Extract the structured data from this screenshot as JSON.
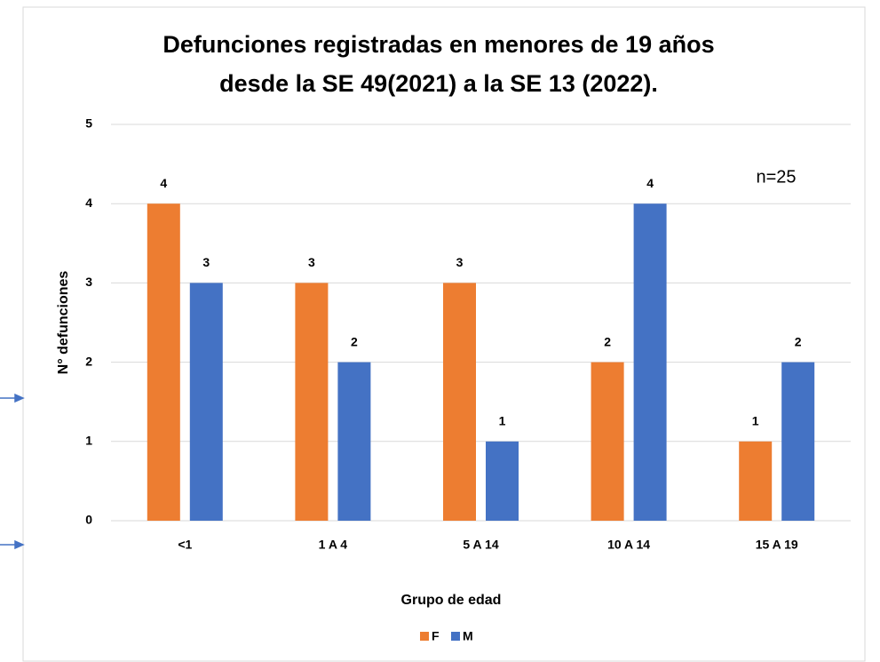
{
  "chart_data": {
    "type": "bar",
    "title": [
      "Defunciones registradas en menores de 19 años",
      "desde la SE 49(2021) a la SE 13 (2022)."
    ],
    "annotation": "n=25",
    "x_label": "Grupo de edad",
    "y_label": "N° defunciones",
    "categories": [
      "<1",
      "1 A 4",
      "5 A 14",
      "10 A 14",
      "15 A 19"
    ],
    "series": [
      {
        "name": "F",
        "color": "#ed7d31",
        "values": [
          4,
          3,
          3,
          2,
          1
        ]
      },
      {
        "name": "M",
        "color": "#4472c4",
        "values": [
          3,
          2,
          1,
          4,
          2
        ]
      }
    ],
    "ylim": [
      0,
      5
    ],
    "yticks": [
      0,
      1,
      2,
      3,
      4,
      5
    ],
    "grid": true,
    "legend": "bottom"
  }
}
